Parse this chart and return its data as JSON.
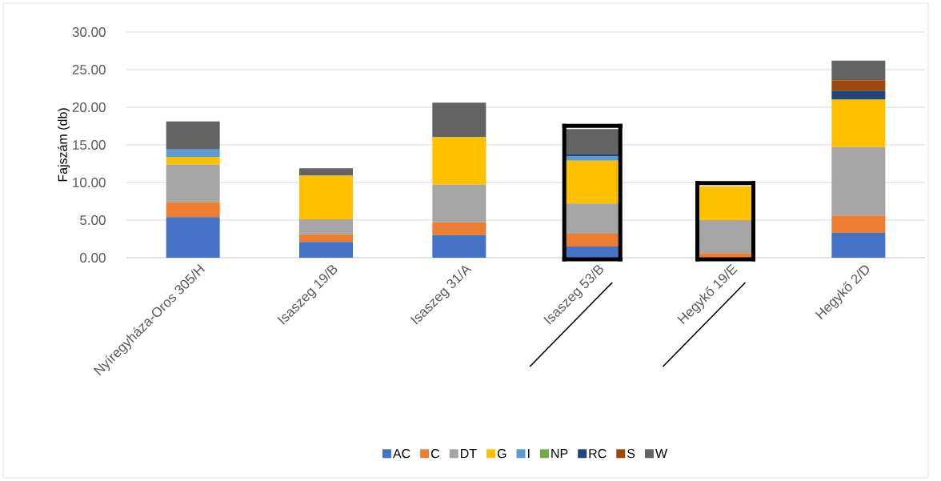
{
  "chart_data": {
    "type": "bar",
    "stacked": true,
    "ylabel": "Fajszám (db)",
    "categories": [
      "Nyíregyháza-Oros 305/H",
      "Isaszeg 19/B",
      "Isaszeg 31/A",
      "Isaszeg 53/B",
      "Hegykő 19/E",
      "Hegykő 2/D"
    ],
    "series": [
      {
        "name": "AC",
        "color": "#4472c4",
        "values": [
          5.4,
          2.1,
          3.0,
          1.5,
          0,
          3.3
        ]
      },
      {
        "name": "C",
        "color": "#ed7d31",
        "values": [
          2.0,
          1.0,
          1.7,
          1.7,
          0.6,
          2.3
        ]
      },
      {
        "name": "DT",
        "color": "#a5a5a5",
        "values": [
          5.0,
          2.0,
          5.0,
          4.0,
          4.4,
          9.1
        ]
      },
      {
        "name": "G",
        "color": "#ffc000",
        "values": [
          1.0,
          5.8,
          6.3,
          5.7,
          4.5,
          6.3
        ]
      },
      {
        "name": "I",
        "color": "#5b9bd5",
        "values": [
          1.0,
          0,
          0,
          0.6,
          0,
          0
        ]
      },
      {
        "name": "NP",
        "color": "#70ad47",
        "values": [
          0,
          0,
          0,
          0,
          0,
          0
        ]
      },
      {
        "name": "RC",
        "color": "#264478",
        "values": [
          0,
          0,
          0,
          0.3,
          0,
          1.2
        ]
      },
      {
        "name": "S",
        "color": "#9e480e",
        "values": [
          0,
          0,
          0,
          0,
          0,
          1.4
        ]
      },
      {
        "name": "W",
        "color": "#636363",
        "values": [
          3.7,
          1.0,
          4.6,
          3.3,
          0,
          2.6
        ]
      }
    ],
    "ylim": [
      0,
      30
    ],
    "yticks": [
      {
        "value": 0,
        "label": "0.00"
      },
      {
        "value": 5,
        "label": "5.00"
      },
      {
        "value": 10,
        "label": "10.00"
      },
      {
        "value": 15,
        "label": "15.00"
      },
      {
        "value": 20,
        "label": "20.00"
      },
      {
        "value": 25,
        "label": "25.00"
      },
      {
        "value": 30,
        "label": "30.00"
      }
    ],
    "grid": "y",
    "legend": "bottom"
  }
}
